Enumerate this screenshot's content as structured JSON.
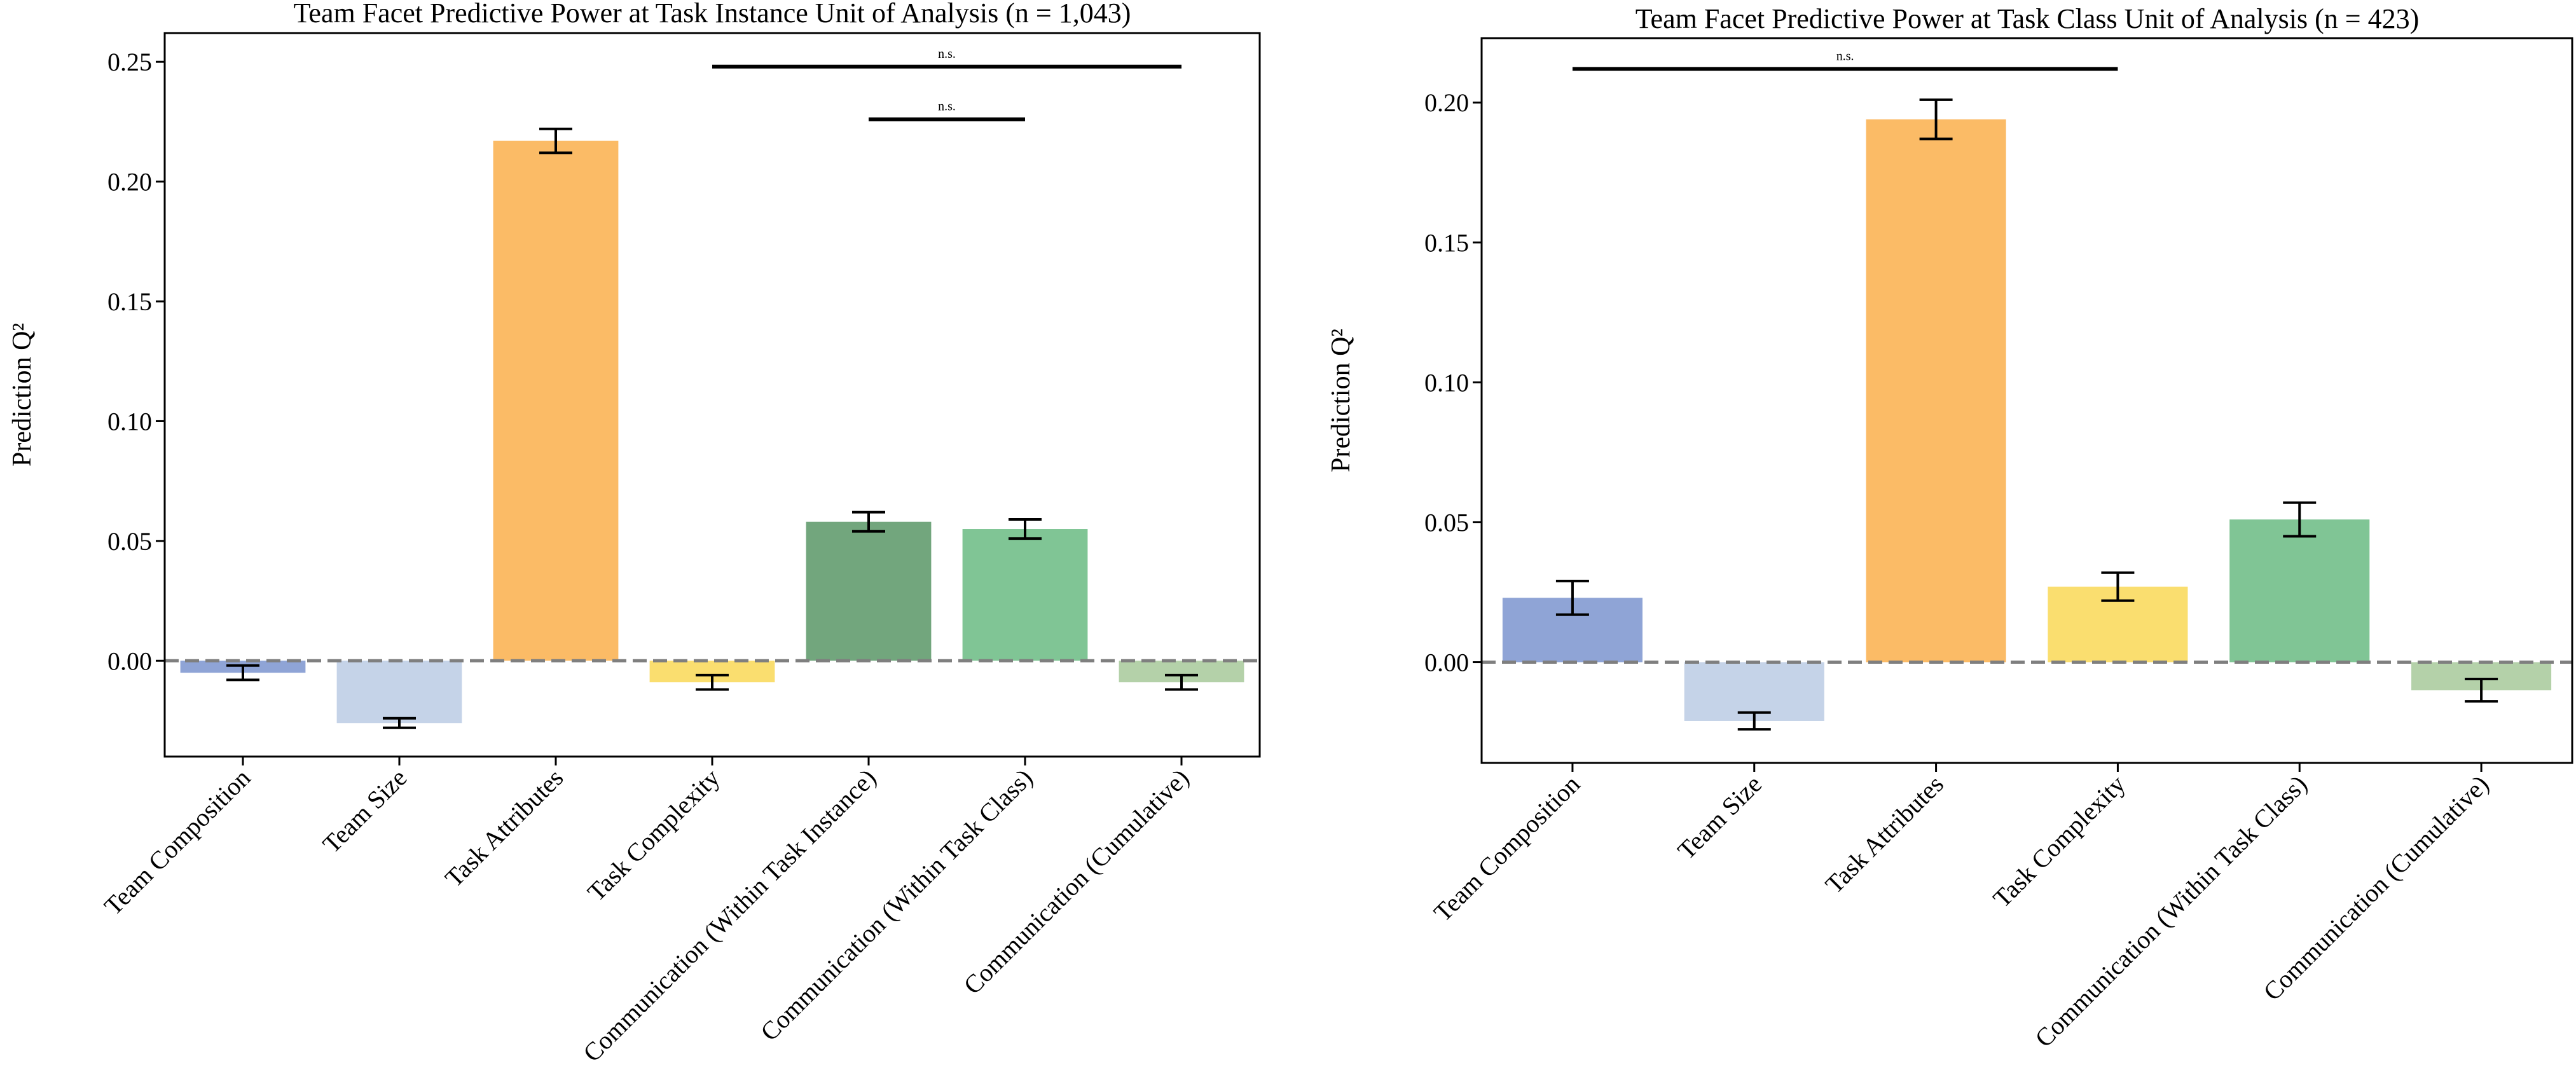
{
  "chart_data": [
    {
      "type": "bar",
      "title": "Team Facet Predictive Power at Task Instance Unit of Analysis (n = 1,043)",
      "xlabel": "",
      "ylabel": "Prediction Q²",
      "ylim": [
        -0.04,
        0.262
      ],
      "yticks": [
        0.0,
        0.05,
        0.1,
        0.15,
        0.2,
        0.25
      ],
      "ytick_labels": [
        "0.00",
        "0.05",
        "0.10",
        "0.15",
        "0.20",
        "0.25"
      ],
      "reference_line": 0.0,
      "categories": [
        "Team Composition",
        "Team Size",
        "Task Attributes",
        "Task Complexity",
        "Communication (Within Task Instance)",
        "Communication (Within Task Class)",
        "Communication (Cumulative)"
      ],
      "values": [
        -0.005,
        -0.026,
        0.217,
        -0.009,
        0.058,
        0.055,
        -0.009
      ],
      "errors": [
        0.003,
        0.002,
        0.005,
        0.003,
        0.004,
        0.004,
        0.003
      ],
      "colors": [
        "#8fa4d6",
        "#c5d3e8",
        "#fbbb66",
        "#fade6f",
        "#72a67d",
        "#80c595",
        "#b4d1a9"
      ],
      "significance": [
        {
          "from": 3,
          "to": 6,
          "label": "n.s.",
          "y": 0.248
        },
        {
          "from": 4,
          "to": 5,
          "label": "n.s.",
          "y": 0.226
        }
      ]
    },
    {
      "type": "bar",
      "title": "Team Facet Predictive Power at Task Class Unit of Analysis (n = 423)",
      "xlabel": "",
      "ylabel": "Prediction Q²",
      "ylim": [
        -0.036,
        0.223
      ],
      "yticks": [
        0.0,
        0.05,
        0.1,
        0.15,
        0.2
      ],
      "ytick_labels": [
        "0.00",
        "0.05",
        "0.10",
        "0.15",
        "0.20"
      ],
      "reference_line": 0.0,
      "categories": [
        "Team Composition",
        "Team Size",
        "Task Attributes",
        "Task Complexity",
        "Communication (Within Task Class)",
        "Communication (Cumulative)"
      ],
      "values": [
        0.023,
        -0.021,
        0.194,
        0.027,
        0.051,
        -0.01
      ],
      "errors": [
        0.006,
        0.003,
        0.007,
        0.005,
        0.006,
        0.004
      ],
      "colors": [
        "#8fa4d6",
        "#c5d3e8",
        "#fbbb66",
        "#fade6f",
        "#80c595",
        "#b4d1a9"
      ],
      "significance": [
        {
          "from": 0,
          "to": 3,
          "label": "n.s.",
          "y": 0.212
        }
      ]
    }
  ]
}
